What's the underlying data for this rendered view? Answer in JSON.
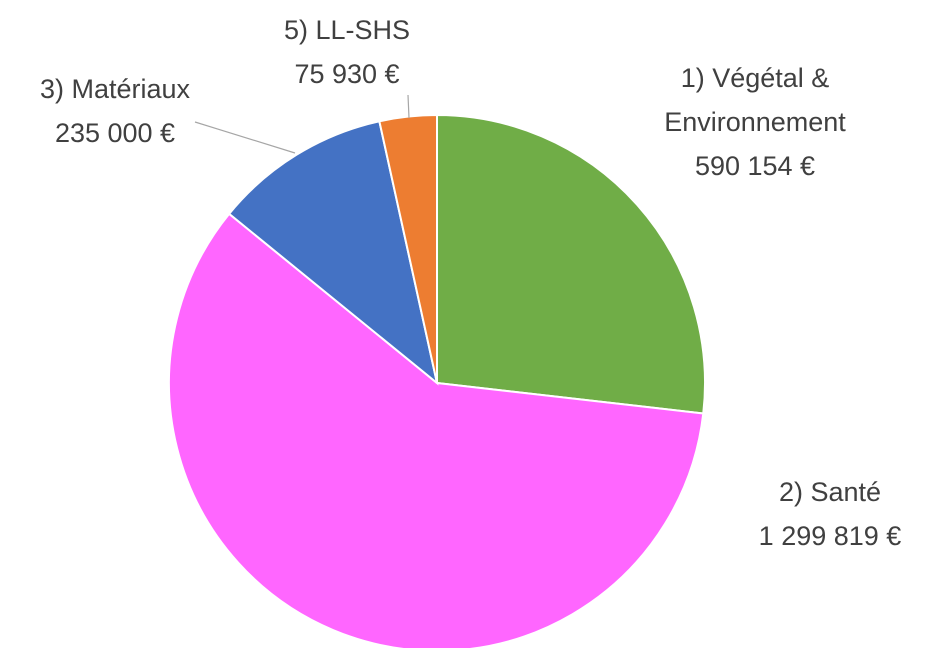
{
  "chart_data": {
    "type": "pie",
    "categories": [
      "1) Végétal & Environnement",
      "2) Santé",
      "3) Matériaux",
      "5) LL-SHS"
    ],
    "values": [
      590154,
      1299819,
      235000,
      75930
    ],
    "value_labels": [
      "590 154 €",
      "1 299 819 €",
      "235 000 €",
      "75 930 €"
    ],
    "colors": [
      "#70ad47",
      "#ff66ff",
      "#4472c4",
      "#ed7d31"
    ]
  }
}
